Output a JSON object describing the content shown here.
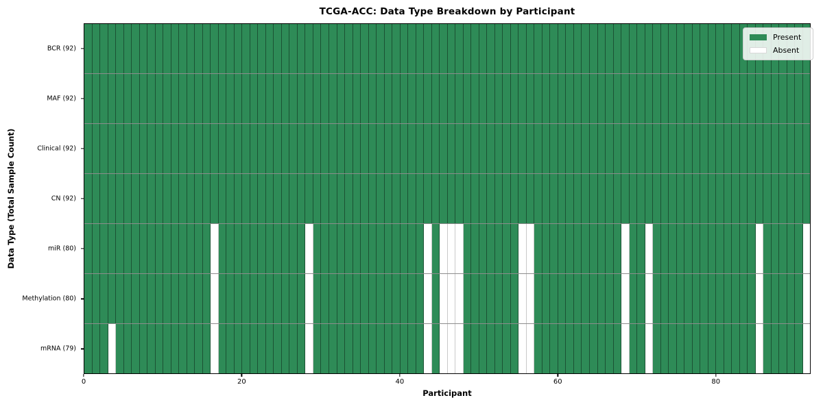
{
  "chart_data": {
    "type": "heatmap",
    "title": "TCGA-ACC: Data Type Breakdown by Participant",
    "xlabel": "Participant",
    "ylabel": "Data Type (Total Sample Count)",
    "x_ticks": [
      0,
      20,
      40,
      60,
      80
    ],
    "x_range": [
      0,
      92
    ],
    "n_participants": 92,
    "grid": false,
    "legend": {
      "position": "upper right",
      "items": [
        {
          "name": "present",
          "label": "Present",
          "color": "#2e8b57"
        },
        {
          "name": "absent",
          "label": "Absent",
          "color": "#ffffff"
        }
      ]
    },
    "colors": {
      "present": "#2e8b57",
      "absent": "#ffffff",
      "row_separator": "#8c8c8c",
      "spine": "#000000"
    },
    "rows": [
      {
        "label": "BCR (92)",
        "data_type": "BCR",
        "total_samples": 92,
        "absent_participants": []
      },
      {
        "label": "MAF (92)",
        "data_type": "MAF",
        "total_samples": 92,
        "absent_participants": []
      },
      {
        "label": "Clinical (92)",
        "data_type": "Clinical",
        "total_samples": 92,
        "absent_participants": []
      },
      {
        "label": "CN (92)",
        "data_type": "CN",
        "total_samples": 92,
        "absent_participants": []
      },
      {
        "label": "miR (80)",
        "data_type": "miR",
        "total_samples": 80,
        "absent_participants": [
          16,
          28,
          43,
          45,
          46,
          47,
          55,
          56,
          68,
          71,
          85,
          91
        ]
      },
      {
        "label": "Methylation (80)",
        "data_type": "Methylation",
        "total_samples": 80,
        "absent_participants": [
          16,
          28,
          43,
          45,
          46,
          47,
          55,
          56,
          68,
          71,
          85,
          91
        ]
      },
      {
        "label": "mRNA (79)",
        "data_type": "mRNA",
        "total_samples": 79,
        "absent_participants": [
          3,
          16,
          28,
          43,
          45,
          46,
          47,
          55,
          56,
          68,
          71,
          85,
          91
        ]
      }
    ]
  }
}
